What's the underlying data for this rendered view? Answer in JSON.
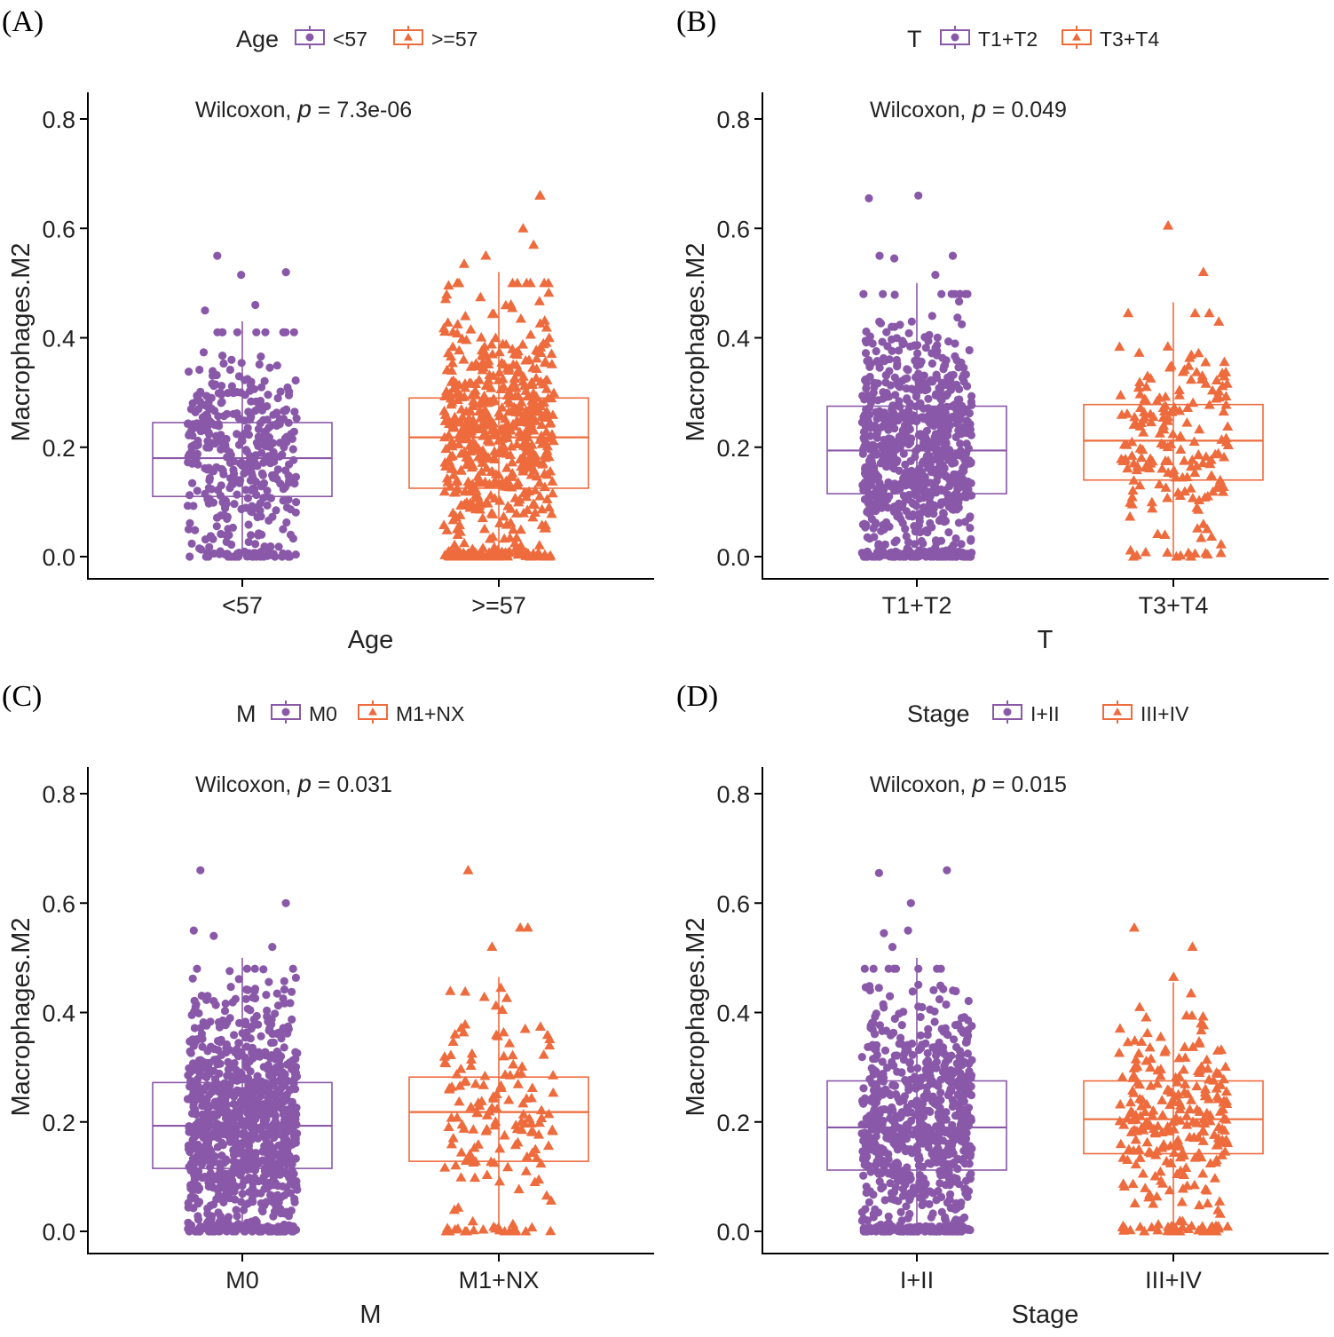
{
  "figure": {
    "colors": {
      "group1": "#8a58a8",
      "group2": "#ee6b3d",
      "axis": "#000000",
      "text": "#222222"
    }
  },
  "chart_data": [
    {
      "type": "boxplot",
      "panel_label": "(A)",
      "legend_title": "Age",
      "legend_placement": "top",
      "groups": [
        "<57",
        ">=57"
      ],
      "xlabel": "Age",
      "ylabel": "Macrophages.M2",
      "ylim": [
        0,
        0.8
      ],
      "yticks": [
        "0.0",
        "0.2",
        "0.4",
        "0.6",
        "0.8"
      ],
      "stat_label": "Wilcoxon, ",
      "p_symbol": "p",
      "p_text": " = 7.3e-06",
      "boxes": [
        {
          "group": "<57",
          "q1": 0.11,
          "median": 0.18,
          "q3": 0.245,
          "whisker_low": 0.0,
          "whisker_high": 0.43,
          "n_points": 420,
          "outliers": [
            0.46,
            0.55,
            0.52,
            0.515,
            0.45
          ]
        },
        {
          "group": ">=57",
          "q1": 0.125,
          "median": 0.218,
          "q3": 0.29,
          "whisker_low": 0.0,
          "whisker_high": 0.52,
          "n_points": 640,
          "outliers": [
            0.535,
            0.55,
            0.6,
            0.66,
            0.66,
            0.57
          ]
        }
      ]
    },
    {
      "type": "boxplot",
      "panel_label": "(B)",
      "legend_title": "T",
      "legend_placement": "top",
      "groups": [
        "T1+T2",
        "T3+T4"
      ],
      "xlabel": "T",
      "ylabel": "Macrophages.M2",
      "ylim": [
        0,
        0.8
      ],
      "yticks": [
        "0.0",
        "0.2",
        "0.4",
        "0.6",
        "0.8"
      ],
      "stat_label": "Wilcoxon, ",
      "p_symbol": "p",
      "p_text": " = 0.049",
      "boxes": [
        {
          "group": "T1+T2",
          "q1": 0.115,
          "median": 0.194,
          "q3": 0.275,
          "whisker_low": 0.0,
          "whisker_high": 0.5,
          "n_points": 900,
          "outliers": [
            0.55,
            0.545,
            0.515,
            0.55,
            0.66,
            0.655
          ]
        },
        {
          "group": "T3+T4",
          "q1": 0.14,
          "median": 0.212,
          "q3": 0.278,
          "whisker_low": 0.0,
          "whisker_high": 0.465,
          "n_points": 190,
          "outliers": [
            0.52,
            0.605
          ]
        }
      ]
    },
    {
      "type": "boxplot",
      "panel_label": "(C)",
      "legend_title": "M",
      "legend_placement": "top",
      "groups": [
        "M0",
        "M1+NX"
      ],
      "xlabel": "M",
      "ylabel": "Macrophages.M2",
      "ylim": [
        0,
        0.8
      ],
      "yticks": [
        "0.0",
        "0.2",
        "0.4",
        "0.6",
        "0.8"
      ],
      "stat_label": "Wilcoxon, ",
      "p_symbol": "p",
      "p_text": " = 0.031",
      "boxes": [
        {
          "group": "M0",
          "q1": 0.115,
          "median": 0.193,
          "q3": 0.272,
          "whisker_low": 0.0,
          "whisker_high": 0.5,
          "n_points": 1000,
          "outliers": [
            0.6,
            0.55,
            0.54,
            0.52,
            0.66
          ]
        },
        {
          "group": "M1+NX",
          "q1": 0.128,
          "median": 0.218,
          "q3": 0.282,
          "whisker_low": 0.0,
          "whisker_high": 0.465,
          "n_points": 160,
          "outliers": [
            0.66,
            0.555,
            0.555,
            0.52
          ]
        }
      ]
    },
    {
      "type": "boxplot",
      "panel_label": "(D)",
      "legend_title": "Stage",
      "legend_placement": "top",
      "groups": [
        "I+II",
        "III+IV"
      ],
      "xlabel": "Stage",
      "ylabel": "Macrophages.M2",
      "ylim": [
        0,
        0.8
      ],
      "yticks": [
        "0.0",
        "0.2",
        "0.4",
        "0.6",
        "0.8"
      ],
      "stat_label": "Wilcoxon, ",
      "p_symbol": "p",
      "p_text": " = 0.015",
      "boxes": [
        {
          "group": "I+II",
          "q1": 0.112,
          "median": 0.19,
          "q3": 0.275,
          "whisker_low": 0.0,
          "whisker_high": 0.5,
          "n_points": 820,
          "outliers": [
            0.6,
            0.55,
            0.545,
            0.52,
            0.66,
            0.655
          ]
        },
        {
          "group": "III+IV",
          "q1": 0.142,
          "median": 0.205,
          "q3": 0.275,
          "whisker_low": 0.0,
          "whisker_high": 0.455,
          "n_points": 280,
          "outliers": [
            0.555,
            0.52,
            0.465
          ]
        }
      ]
    }
  ]
}
